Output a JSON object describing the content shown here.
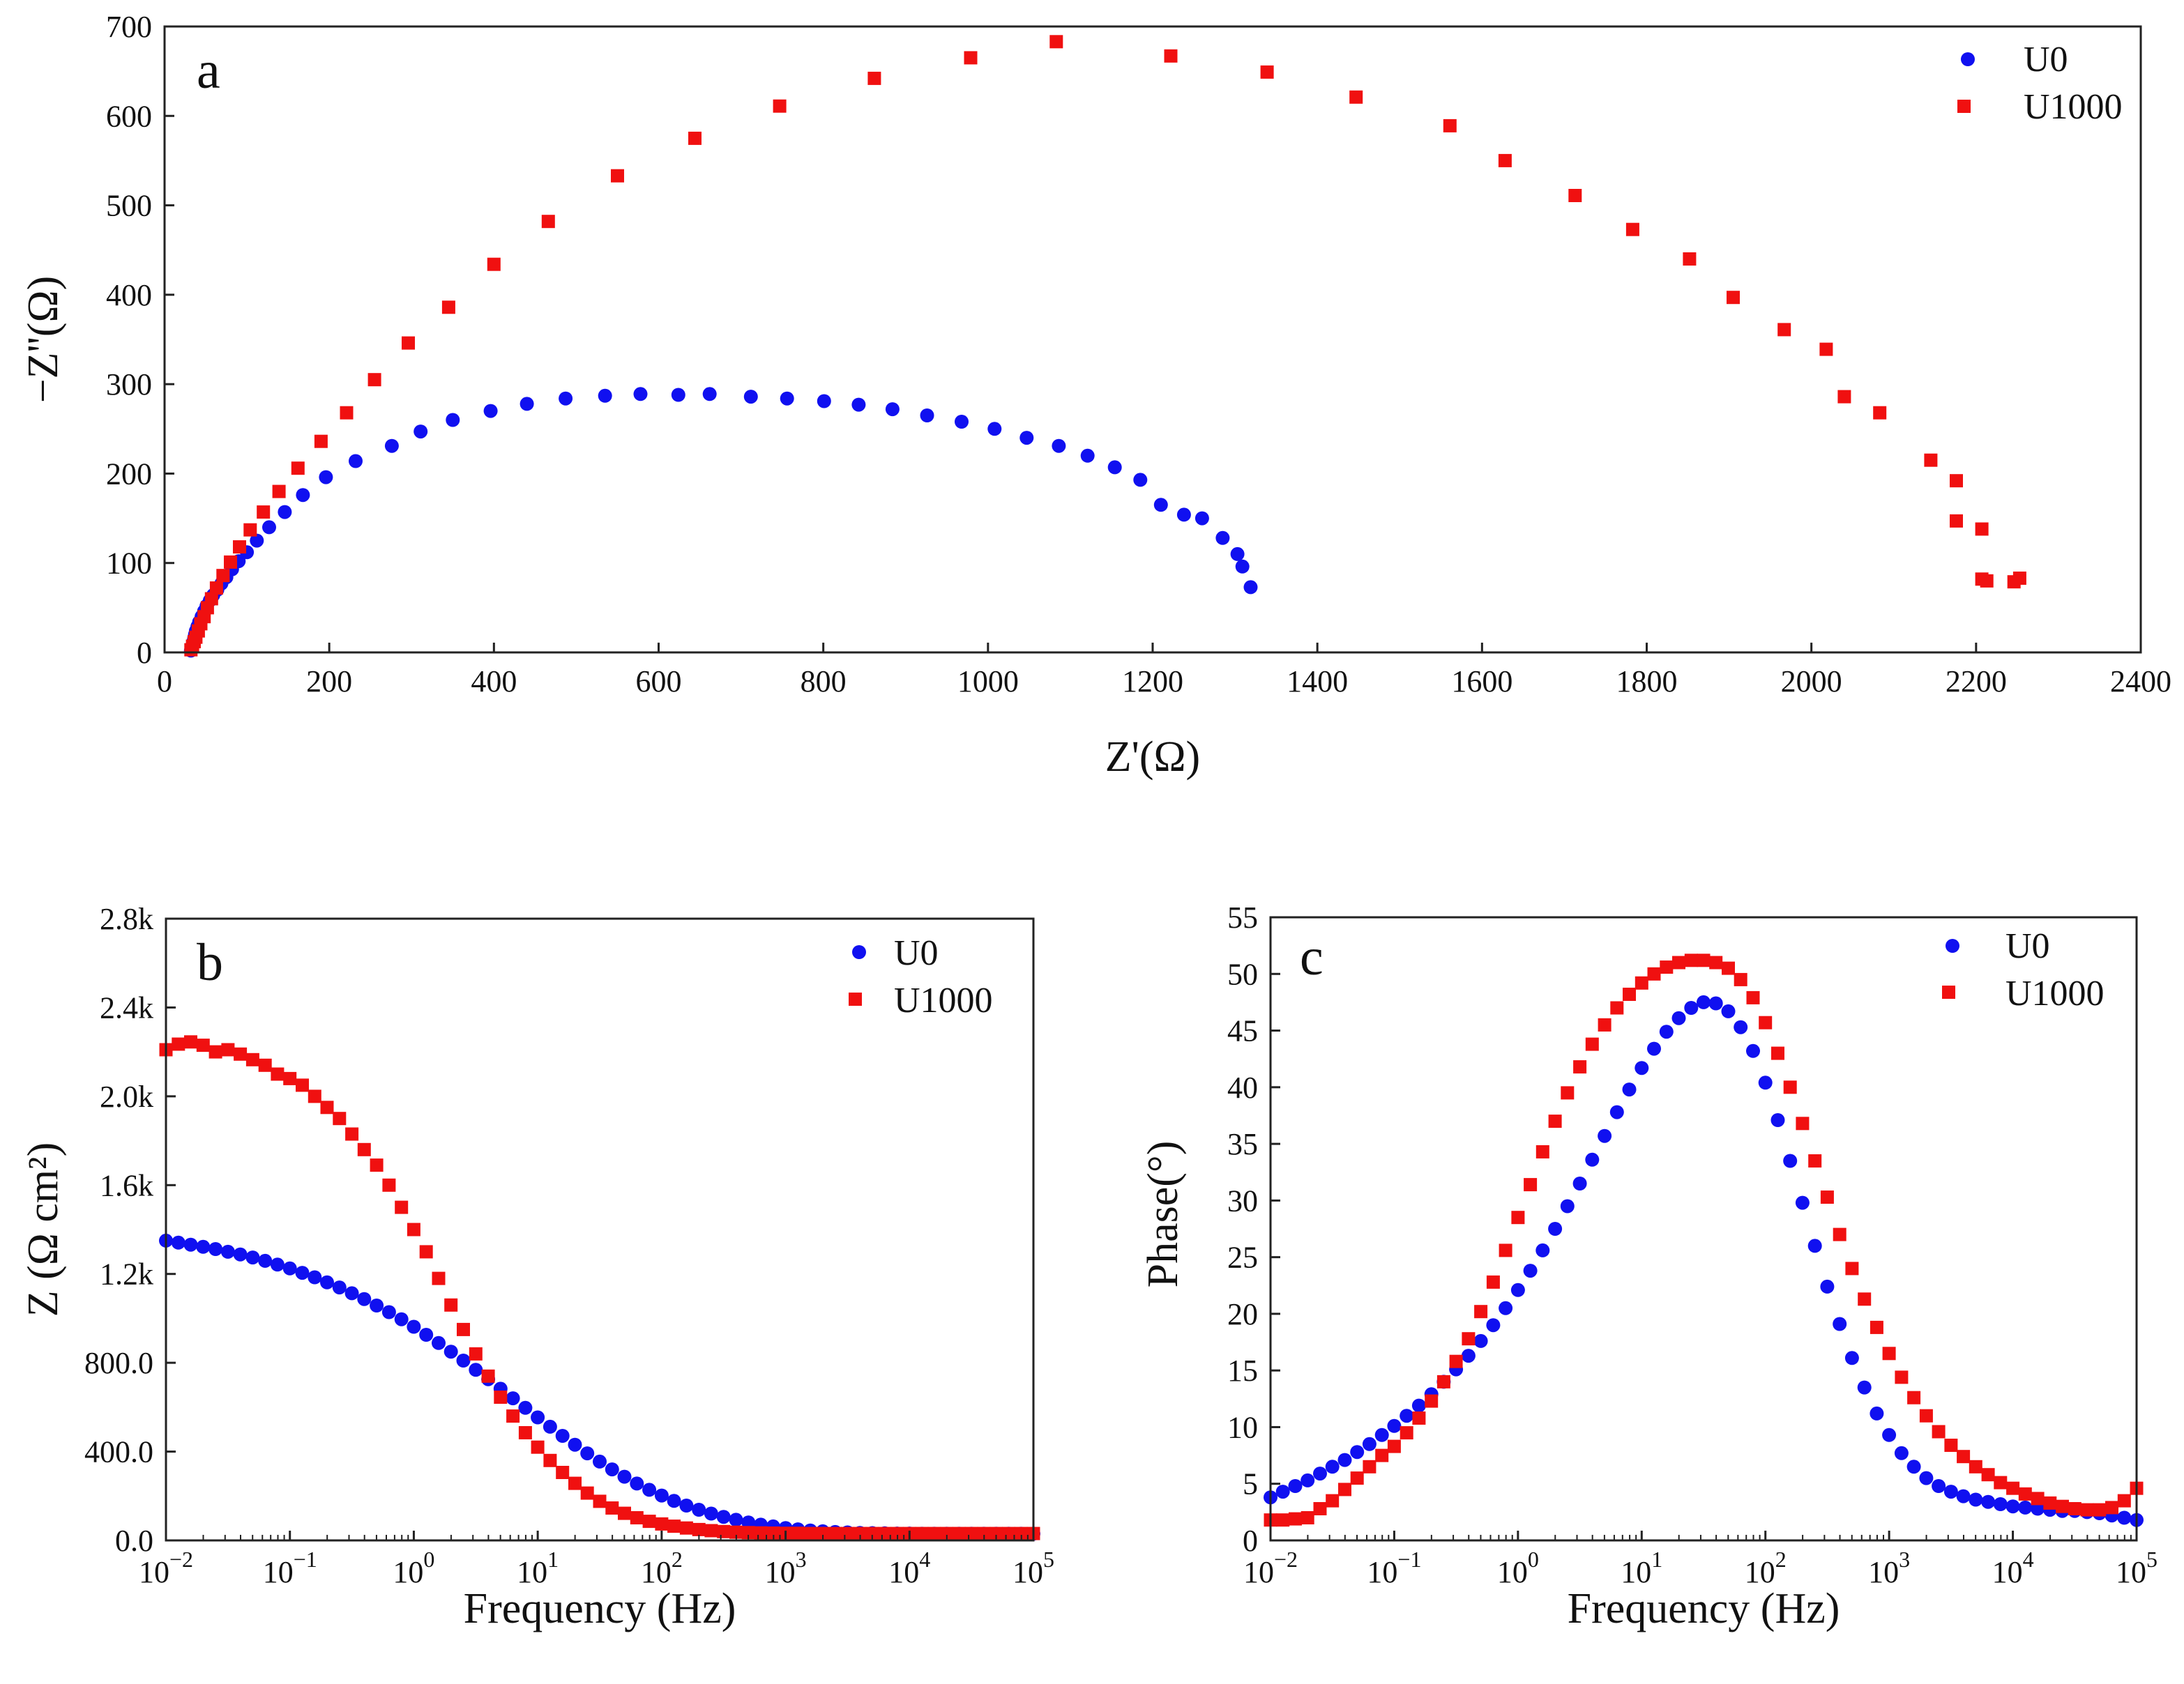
{
  "colors": {
    "U0": "#1010f0",
    "U1000": "#f01010",
    "axis": "#222222"
  },
  "chart_data": [
    {
      "id": "a",
      "type": "scatter",
      "panel_label": "a",
      "title": "",
      "xlabel": "Z'(Ω)",
      "ylabel": "−Z''(Ω)",
      "xlim": [
        0,
        2400
      ],
      "ylim": [
        0,
        700
      ],
      "xticks": [
        0,
        200,
        400,
        600,
        800,
        1000,
        1200,
        1400,
        1600,
        1800,
        2000,
        2200,
        2400
      ],
      "yticks": [
        0,
        100,
        200,
        300,
        400,
        500,
        600,
        700
      ],
      "legend": [
        "U0",
        "U1000"
      ],
      "legend_position": "top-right",
      "series": [
        {
          "name": "U0",
          "marker": "circle",
          "points": [
            [
              32,
              2
            ],
            [
              33,
              5
            ],
            [
              34,
              8
            ],
            [
              35,
              12
            ],
            [
              36,
              16
            ],
            [
              37,
              20
            ],
            [
              38,
              24
            ],
            [
              40,
              29
            ],
            [
              42,
              34
            ],
            [
              45,
              40
            ],
            [
              48,
              46
            ],
            [
              51,
              52
            ],
            [
              55,
              58
            ],
            [
              59,
              64
            ],
            [
              64,
              70
            ],
            [
              69,
              77
            ],
            [
              75,
              84
            ],
            [
              82,
              93
            ],
            [
              90,
              102
            ],
            [
              100,
              112
            ],
            [
              112,
              125
            ],
            [
              127,
              140
            ],
            [
              146,
              157
            ],
            [
              168,
              176
            ],
            [
              196,
              196
            ],
            [
              232,
              214
            ],
            [
              276,
              231
            ],
            [
              311,
              247
            ],
            [
              350,
              260
            ],
            [
              396,
              270
            ],
            [
              440,
              278
            ],
            [
              487,
              284
            ],
            [
              535,
              287
            ],
            [
              578,
              289
            ],
            [
              624,
              288
            ],
            [
              662,
              289
            ],
            [
              712,
              286
            ],
            [
              756,
              284
            ],
            [
              801,
              281
            ],
            [
              843,
              277
            ],
            [
              884,
              272
            ],
            [
              926,
              265
            ],
            [
              968,
              258
            ],
            [
              1008,
              250
            ],
            [
              1047,
              240
            ],
            [
              1086,
              231
            ],
            [
              1121,
              220
            ],
            [
              1154,
              207
            ],
            [
              1185,
              193
            ],
            [
              1210,
              165
            ],
            [
              1238,
              154
            ],
            [
              1260,
              150
            ],
            [
              1285,
              128
            ],
            [
              1303,
              110
            ],
            [
              1309,
              96
            ],
            [
              1319,
              73
            ]
          ]
        },
        {
          "name": "U1000",
          "marker": "square",
          "points": [
            [
              32,
              3
            ],
            [
              34,
              7
            ],
            [
              36,
              12
            ],
            [
              38,
              17
            ],
            [
              41,
              24
            ],
            [
              44,
              32
            ],
            [
              48,
              40
            ],
            [
              52,
              50
            ],
            [
              57,
              60
            ],
            [
              63,
              72
            ],
            [
              71,
              86
            ],
            [
              80,
              101
            ],
            [
              91,
              118
            ],
            [
              104,
              137
            ],
            [
              120,
              157
            ],
            [
              139,
              180
            ],
            [
              162,
              206
            ],
            [
              190,
              236
            ],
            [
              221,
              268
            ],
            [
              255,
              305
            ],
            [
              296,
              346
            ],
            [
              345,
              386
            ],
            [
              400,
              434
            ],
            [
              466,
              482
            ],
            [
              550,
              533
            ],
            [
              644,
              575
            ],
            [
              747,
              611
            ],
            [
              862,
              642
            ],
            [
              979,
              665
            ],
            [
              1083,
              683
            ],
            [
              1222,
              667
            ],
            [
              1339,
              649
            ],
            [
              1447,
              621
            ],
            [
              1561,
              589
            ],
            [
              1628,
              550
            ],
            [
              1713,
              511
            ],
            [
              1783,
              473
            ],
            [
              1852,
              440
            ],
            [
              1905,
              397
            ],
            [
              1967,
              361
            ],
            [
              2018,
              339
            ],
            [
              2040,
              286
            ],
            [
              2083,
              268
            ],
            [
              2145,
              215
            ],
            [
              2176,
              192
            ],
            [
              2176,
              147
            ],
            [
              2207,
              138
            ],
            [
              2207,
              82
            ],
            [
              2213,
              80
            ],
            [
              2246,
              79
            ],
            [
              2253,
              83
            ]
          ]
        }
      ]
    },
    {
      "id": "b",
      "type": "scatter",
      "panel_label": "b",
      "title": "",
      "xlabel": "Frequency (Hz)",
      "ylabel": "Z (Ω cm²)",
      "xscale": "log",
      "xlim_log10": [
        -2,
        5
      ],
      "xtick_exponents": [
        -2,
        -1,
        0,
        1,
        2,
        3,
        4,
        5
      ],
      "xtick_base": "10",
      "ylim": [
        0,
        2800
      ],
      "yticks": [
        0,
        400,
        800,
        1200,
        1600,
        2000,
        2400,
        2800
      ],
      "ytick_labels": [
        "0.0",
        "400.0",
        "800.0",
        "1.2k",
        "1.6k",
        "2.0k",
        "2.4k",
        "2.8k"
      ],
      "legend": [
        "U0",
        "U1000"
      ],
      "legend_position": "top-right",
      "points_per_decade": 10,
      "series": [
        {
          "name": "U0",
          "marker": "circle",
          "values": [
            1350,
            1341,
            1332,
            1322,
            1312,
            1300,
            1288,
            1274,
            1259,
            1242,
            1225,
            1205,
            1185,
            1162,
            1139,
            1113,
            1087,
            1058,
            1028,
            996,
            962,
            926,
            889,
            850,
            810,
            768,
            726,
            683,
            640,
            597,
            554,
            512,
            471,
            431,
            392,
            355,
            320,
            287,
            256,
            228,
            202,
            178,
            157,
            138,
            121,
            106,
            93,
            81,
            71,
            63,
            56,
            50,
            45,
            41,
            38,
            36,
            34,
            33,
            32,
            31,
            31,
            30,
            30,
            30,
            30,
            30,
            30,
            30,
            30,
            30,
            30
          ]
        },
        {
          "name": "U1000",
          "marker": "square",
          "values": [
            2210,
            2235,
            2245,
            2230,
            2200,
            2210,
            2190,
            2165,
            2140,
            2100,
            2080,
            2050,
            2000,
            1950,
            1900,
            1830,
            1760,
            1690,
            1600,
            1500,
            1400,
            1300,
            1180,
            1060,
            950,
            840,
            740,
            645,
            560,
            485,
            420,
            360,
            306,
            257,
            213,
            176,
            146,
            122,
            102,
            86,
            74,
            64,
            56,
            49,
            44,
            40,
            37,
            35,
            34,
            33,
            32,
            32,
            31,
            31,
            31,
            31,
            31,
            31,
            31,
            31,
            31,
            31,
            31,
            31,
            31,
            31,
            31,
            31,
            31,
            31,
            31
          ]
        }
      ]
    },
    {
      "id": "c",
      "type": "scatter",
      "panel_label": "c",
      "title": "",
      "xlabel": "Frequency (Hz)",
      "ylabel": "Phase(°)",
      "xscale": "log",
      "xlim_log10": [
        -2,
        5
      ],
      "xtick_exponents": [
        -2,
        -1,
        0,
        1,
        2,
        3,
        4,
        5
      ],
      "xtick_base": "10",
      "ylim": [
        0,
        55
      ],
      "yticks": [
        0,
        5,
        10,
        15,
        20,
        25,
        30,
        35,
        40,
        45,
        50,
        55
      ],
      "legend": [
        "U0",
        "U1000"
      ],
      "legend_position": "top-right",
      "points_per_decade": 10,
      "series": [
        {
          "name": "U0",
          "marker": "circle",
          "values": [
            3.8,
            4.3,
            4.8,
            5.3,
            5.9,
            6.5,
            7.1,
            7.8,
            8.5,
            9.3,
            10.1,
            11.0,
            11.9,
            12.9,
            14.0,
            15.1,
            16.3,
            17.6,
            19.0,
            20.5,
            22.1,
            23.8,
            25.6,
            27.5,
            29.5,
            31.5,
            33.6,
            35.7,
            37.8,
            39.8,
            41.7,
            43.4,
            44.9,
            46.1,
            47.0,
            47.5,
            47.4,
            46.7,
            45.3,
            43.2,
            40.4,
            37.1,
            33.5,
            29.8,
            26.0,
            22.4,
            19.1,
            16.1,
            13.5,
            11.2,
            9.3,
            7.7,
            6.5,
            5.5,
            4.8,
            4.3,
            3.9,
            3.6,
            3.4,
            3.2,
            3.0,
            2.9,
            2.8,
            2.7,
            2.6,
            2.6,
            2.5,
            2.4,
            2.2,
            2.0,
            1.8
          ]
        },
        {
          "name": "U1000",
          "marker": "square",
          "values": [
            1.8,
            1.8,
            1.9,
            2.0,
            2.8,
            3.5,
            4.5,
            5.5,
            6.5,
            7.5,
            8.3,
            9.5,
            10.8,
            12.3,
            14.0,
            15.8,
            17.8,
            20.2,
            22.8,
            25.6,
            28.5,
            31.4,
            34.3,
            37.0,
            39.5,
            41.8,
            43.8,
            45.5,
            47.0,
            48.2,
            49.2,
            50.0,
            50.6,
            51.0,
            51.2,
            51.2,
            51.0,
            50.5,
            49.5,
            47.9,
            45.7,
            43.0,
            40.0,
            36.8,
            33.5,
            30.3,
            27.0,
            24.0,
            21.3,
            18.8,
            16.5,
            14.4,
            12.6,
            11.0,
            9.6,
            8.4,
            7.4,
            6.5,
            5.8,
            5.1,
            4.6,
            4.1,
            3.7,
            3.3,
            3.0,
            2.8,
            2.7,
            2.7,
            2.9,
            3.5,
            4.6
          ]
        }
      ]
    }
  ]
}
